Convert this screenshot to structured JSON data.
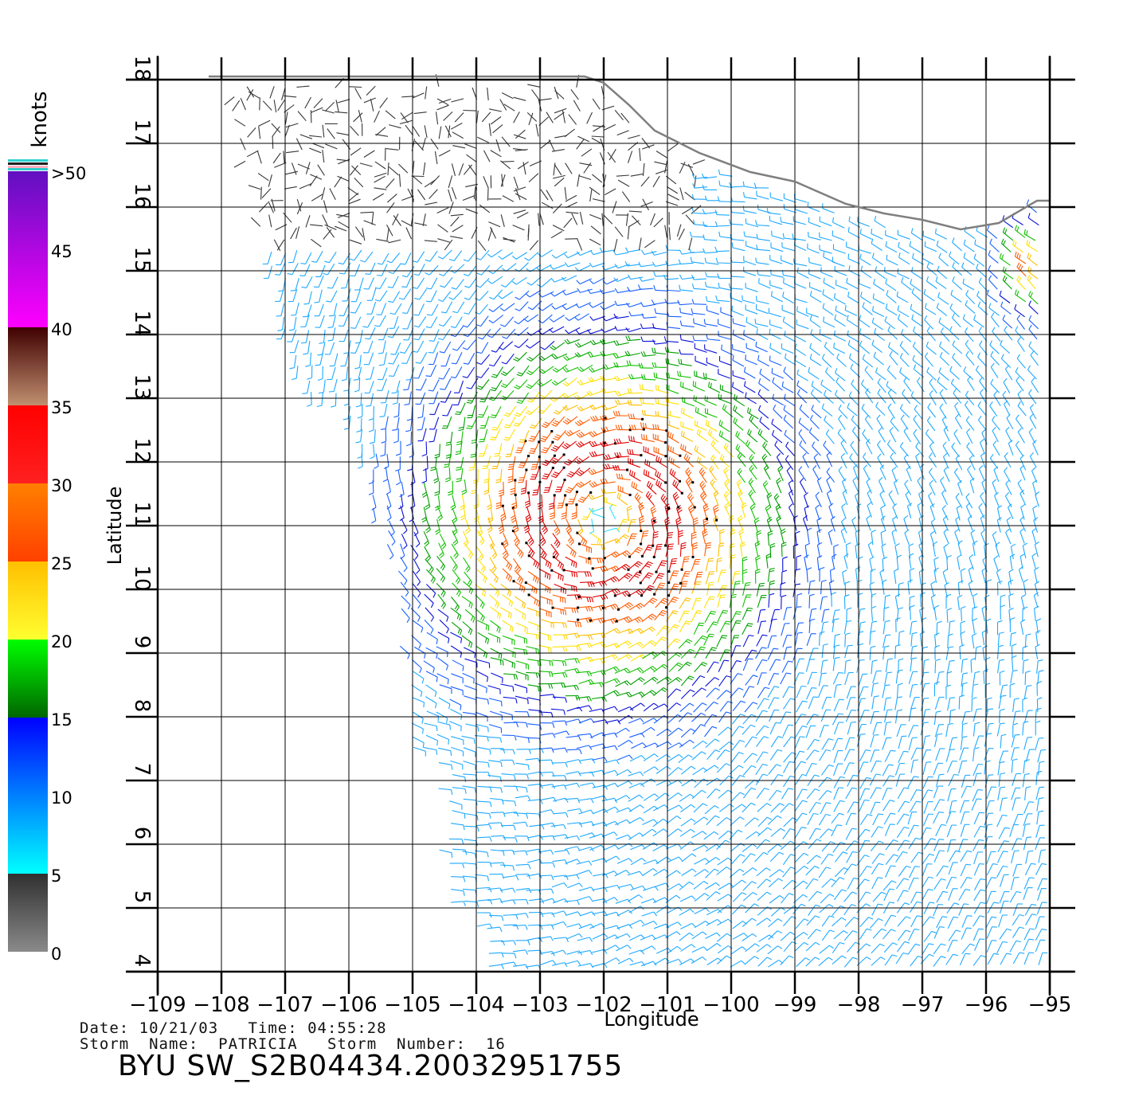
{
  "map": {
    "x_axis_label": "Longitude",
    "y_axis_label": "Latitude",
    "lon_range": [
      -109,
      -95
    ],
    "lat_range": [
      4,
      18
    ],
    "x_ticks": [
      "−109",
      "−108",
      "−107",
      "−106",
      "−105",
      "−104",
      "−103",
      "−102",
      "−101",
      "−100",
      "−99",
      "−98",
      "−97",
      "−96",
      "−95"
    ],
    "y_ticks": [
      "4",
      "5",
      "6",
      "7",
      "8",
      "9",
      "10",
      "11",
      "12",
      "13",
      "14",
      "15",
      "16",
      "17",
      "18"
    ],
    "grid": true,
    "coastline_color": "#7f7f7f",
    "storm_center_lonlat": [
      -102,
      11.1
    ]
  },
  "colorbar": {
    "title": "knots",
    "tick_labels": [
      ">50",
      "45",
      "40",
      "35",
      "30",
      "25",
      "20",
      "15",
      "10",
      "5",
      "0"
    ],
    "segments": [
      {
        "from": 0,
        "to": 5,
        "top": "#303030",
        "bottom": "#8a8a8a"
      },
      {
        "from": 5,
        "to": 15,
        "top": "#0000ff",
        "bottom": "#00ffff"
      },
      {
        "from": 15,
        "to": 20,
        "top": "#00ff00",
        "bottom": "#006600"
      },
      {
        "from": 20,
        "to": 25,
        "top": "#ffbf00",
        "bottom": "#ffff30"
      },
      {
        "from": 25,
        "to": 30,
        "top": "#ff8000",
        "bottom": "#ff4000"
      },
      {
        "from": 30,
        "to": 35,
        "top": "#ff0000",
        "bottom": "#ff2020"
      },
      {
        "from": 35,
        "to": 40,
        "top": "#400000",
        "bottom": "#c09070"
      },
      {
        "from": 40,
        "to": 50,
        "top": "#6010c0",
        "bottom": "#ff00ff"
      }
    ]
  },
  "info": {
    "line1": "Date: 10/21/03   Time: 04:55:28",
    "line2": "Storm  Name:  PATRICIA   Storm  Number:  16",
    "title": "BYU  SW_S2B04434.20032951755"
  }
}
